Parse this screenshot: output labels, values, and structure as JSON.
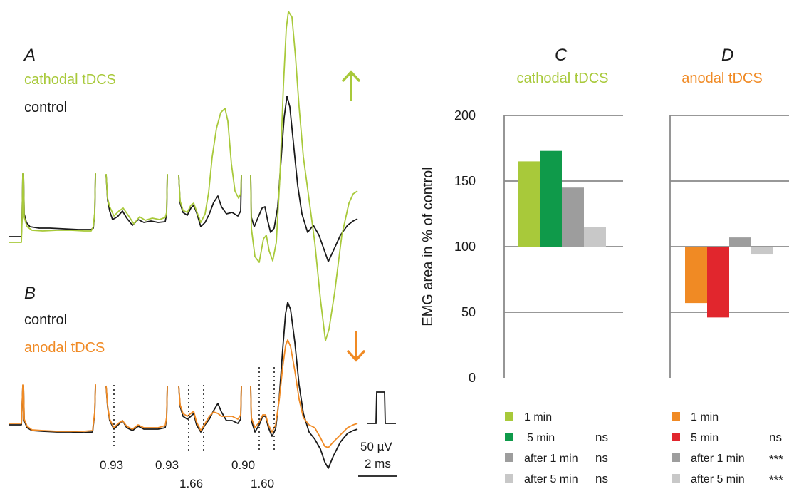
{
  "colors": {
    "cathodal": "#a8c93a",
    "anodal": "#f08a24",
    "control": "#1a1a1a",
    "c_1min": "#a8c93a",
    "c_5min": "#0f9a4a",
    "after1": "#9d9d9d",
    "after5": "#c8c8c8",
    "d_1min": "#f08a24",
    "d_5min": "#e1262d",
    "grid": "#8a8a8a"
  },
  "panel_a": {
    "letter": "A",
    "label_tdcs": "cathodal tDCS",
    "label_control": "control",
    "arrow": "up-arrow"
  },
  "panel_b": {
    "letter": "B",
    "label_control": "control",
    "label_tdcs": "anodal tDCS",
    "arrow": "down-arrow",
    "latencies_top": [
      "0.93",
      "0.93",
      "0.90"
    ],
    "latencies_bottom": [
      "1.66",
      "1.60"
    ],
    "scale_voltage": "50 µV",
    "scale_time": "2 ms"
  },
  "chart_data": [
    {
      "type": "bar",
      "panel": "C",
      "title": "cathodal tDCS",
      "ylabel": "EMG area in % of control",
      "ylim": [
        0,
        200
      ],
      "yticks": [
        0,
        50,
        100,
        150,
        200
      ],
      "baseline": 100,
      "grid": true,
      "categories": [
        "1 min",
        "5 min",
        "after 1 min",
        "after 5 min"
      ],
      "values": [
        165,
        173,
        145,
        115
      ],
      "significance": [
        "",
        "ns",
        "ns",
        "ns"
      ],
      "legend_position": "bottom"
    },
    {
      "type": "bar",
      "panel": "D",
      "title": "anodal tDCS",
      "ylim": [
        0,
        200
      ],
      "yticks": [
        0,
        50,
        100,
        150,
        200
      ],
      "baseline": 100,
      "grid": true,
      "categories": [
        "1 min",
        "5 min",
        "after 1 min",
        "after 5 min"
      ],
      "values": [
        57,
        46,
        107,
        94
      ],
      "significance": [
        "",
        "ns",
        "***",
        "***"
      ],
      "legend_position": "bottom"
    }
  ]
}
